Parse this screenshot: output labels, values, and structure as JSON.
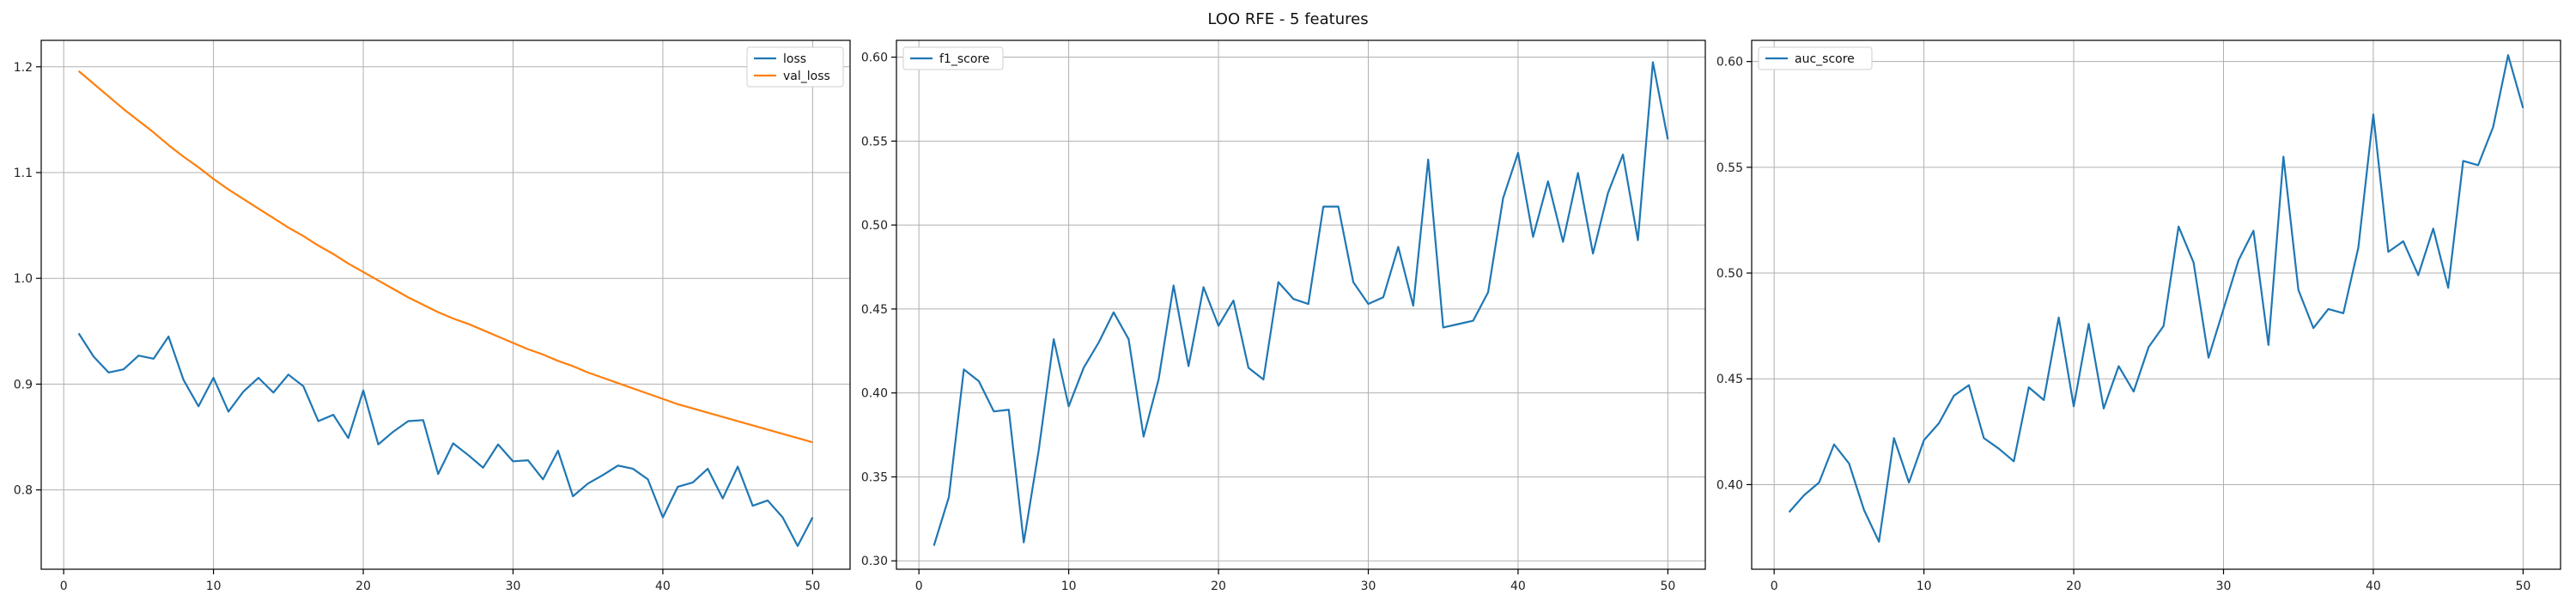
{
  "figure_title": "LOO RFE - 5 features",
  "colors": {
    "blue": "#1f77b4",
    "orange": "#ff7f0e"
  },
  "chart_data": [
    {
      "type": "line",
      "title": "",
      "xlabel": "",
      "ylabel": "",
      "xlim": [
        -1.5,
        52.5
      ],
      "ylim": [
        0.725,
        1.225
      ],
      "xticks": [
        0,
        10,
        20,
        30,
        40,
        50
      ],
      "yticks": [
        0.8,
        0.9,
        1.0,
        1.1,
        1.2
      ],
      "yticks_labels": [
        "0.8",
        "0.9",
        "1.0",
        "1.1",
        "1.2"
      ],
      "grid": true,
      "legend_position": "top-right",
      "x": [
        1,
        2,
        3,
        4,
        5,
        6,
        7,
        8,
        9,
        10,
        11,
        12,
        13,
        14,
        15,
        16,
        17,
        18,
        19,
        20,
        21,
        22,
        23,
        24,
        25,
        26,
        27,
        28,
        29,
        30,
        31,
        32,
        33,
        34,
        35,
        36,
        37,
        38,
        39,
        40,
        41,
        42,
        43,
        44,
        45,
        46,
        47,
        48,
        49,
        50
      ],
      "series": [
        {
          "name": "loss",
          "color": "#1f77b4",
          "values": [
            0.948,
            0.926,
            0.911,
            0.914,
            0.927,
            0.924,
            0.945,
            0.904,
            0.879,
            0.906,
            0.874,
            0.893,
            0.906,
            0.892,
            0.909,
            0.898,
            0.865,
            0.871,
            0.849,
            0.894,
            0.843,
            0.855,
            0.865,
            0.866,
            0.815,
            0.844,
            0.833,
            0.821,
            0.843,
            0.827,
            0.828,
            0.81,
            0.837,
            0.794,
            0.806,
            0.814,
            0.823,
            0.82,
            0.81,
            0.774,
            0.803,
            0.807,
            0.82,
            0.792,
            0.822,
            0.785,
            0.79,
            0.774,
            0.747,
            0.774
          ]
        },
        {
          "name": "val_loss",
          "color": "#ff7f0e",
          "values": [
            1.196,
            1.184,
            1.172,
            1.16,
            1.149,
            1.138,
            1.126,
            1.115,
            1.105,
            1.094,
            1.084,
            1.075,
            1.066,
            1.057,
            1.048,
            1.04,
            1.031,
            1.023,
            1.014,
            1.006,
            0.998,
            0.99,
            0.982,
            0.975,
            0.968,
            0.962,
            0.957,
            0.951,
            0.945,
            0.939,
            0.933,
            0.928,
            0.922,
            0.917,
            0.911,
            0.906,
            0.901,
            0.896,
            0.891,
            0.886,
            0.881,
            0.877,
            0.873,
            0.869,
            0.865,
            0.861,
            0.857,
            0.853,
            0.849,
            0.845
          ]
        }
      ]
    },
    {
      "type": "line",
      "title": "",
      "xlabel": "",
      "ylabel": "",
      "xlim": [
        -1.5,
        52.5
      ],
      "ylim": [
        0.295,
        0.61
      ],
      "xticks": [
        0,
        10,
        20,
        30,
        40,
        50
      ],
      "yticks": [
        0.3,
        0.35,
        0.4,
        0.45,
        0.5,
        0.55,
        0.6
      ],
      "yticks_labels": [
        "0.30",
        "0.35",
        "0.40",
        "0.45",
        "0.50",
        "0.55",
        "0.60"
      ],
      "grid": true,
      "legend_position": "top-left",
      "x": [
        1,
        2,
        3,
        4,
        5,
        6,
        7,
        8,
        9,
        10,
        11,
        12,
        13,
        14,
        15,
        16,
        17,
        18,
        19,
        20,
        21,
        22,
        23,
        24,
        25,
        26,
        27,
        28,
        29,
        30,
        31,
        32,
        33,
        34,
        35,
        36,
        37,
        38,
        39,
        40,
        41,
        42,
        43,
        44,
        45,
        46,
        47,
        48,
        49,
        50
      ],
      "series": [
        {
          "name": "f1_score",
          "color": "#1f77b4",
          "values": [
            0.309,
            0.338,
            0.414,
            0.407,
            0.389,
            0.39,
            0.311,
            0.366,
            0.432,
            0.392,
            0.415,
            0.43,
            0.448,
            0.432,
            0.374,
            0.408,
            0.464,
            0.416,
            0.463,
            0.44,
            0.455,
            0.415,
            0.408,
            0.466,
            0.456,
            0.453,
            0.511,
            0.511,
            0.466,
            0.453,
            0.457,
            0.487,
            0.452,
            0.539,
            0.439,
            0.441,
            0.443,
            0.46,
            0.516,
            0.543,
            0.493,
            0.526,
            0.49,
            0.531,
            0.483,
            0.519,
            0.542,
            0.491,
            0.597,
            0.551
          ]
        }
      ]
    },
    {
      "type": "line",
      "title": "",
      "xlabel": "",
      "ylabel": "",
      "xlim": [
        -1.5,
        52.5
      ],
      "ylim": [
        0.36,
        0.61
      ],
      "xticks": [
        0,
        10,
        20,
        30,
        40,
        50
      ],
      "yticks": [
        0.4,
        0.45,
        0.5,
        0.55,
        0.6
      ],
      "yticks_labels": [
        "0.40",
        "0.45",
        "0.50",
        "0.55",
        "0.60"
      ],
      "grid": true,
      "legend_position": "top-left",
      "x": [
        1,
        2,
        3,
        4,
        5,
        6,
        7,
        8,
        9,
        10,
        11,
        12,
        13,
        14,
        15,
        16,
        17,
        18,
        19,
        20,
        21,
        22,
        23,
        24,
        25,
        26,
        27,
        28,
        29,
        30,
        31,
        32,
        33,
        34,
        35,
        36,
        37,
        38,
        39,
        40,
        41,
        42,
        43,
        44,
        45,
        46,
        47,
        48,
        49,
        50
      ],
      "series": [
        {
          "name": "auc_score",
          "color": "#1f77b4",
          "values": [
            0.387,
            0.395,
            0.401,
            0.419,
            0.41,
            0.388,
            0.373,
            0.422,
            0.401,
            0.421,
            0.429,
            0.442,
            0.447,
            0.422,
            0.417,
            0.411,
            0.446,
            0.44,
            0.479,
            0.437,
            0.476,
            0.436,
            0.456,
            0.444,
            0.465,
            0.475,
            0.522,
            0.505,
            0.46,
            0.483,
            0.506,
            0.52,
            0.466,
            0.555,
            0.492,
            0.474,
            0.483,
            0.481,
            0.512,
            0.575,
            0.51,
            0.515,
            0.499,
            0.521,
            0.493,
            0.553,
            0.551,
            0.569,
            0.603,
            0.578
          ]
        }
      ]
    }
  ]
}
